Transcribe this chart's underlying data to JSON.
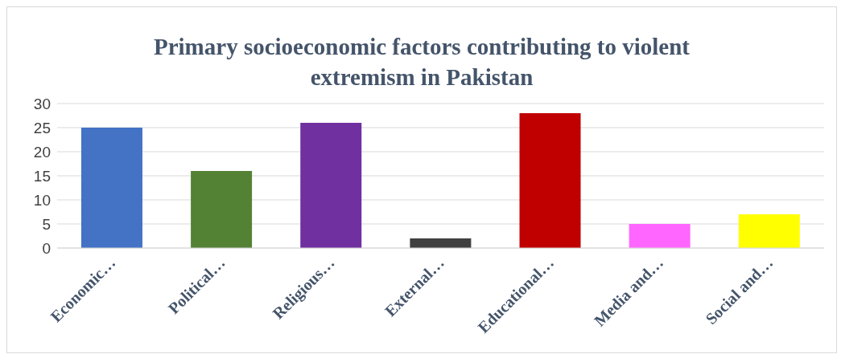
{
  "chart_data": {
    "type": "bar",
    "title": "Primary socioeconomic factors contributing to violent extremism in Pakistan",
    "categories": [
      "Economic…",
      "Political…",
      "Religious…",
      "External…",
      "Educational…",
      "Media and…",
      "Social and…"
    ],
    "values": [
      25,
      16,
      26,
      2,
      28,
      5,
      7
    ],
    "colors": [
      "#4472c4",
      "#548235",
      "#7030a0",
      "#404040",
      "#c00000",
      "#ff66ff",
      "#ffff00"
    ],
    "ylim": [
      0,
      30
    ],
    "yticks": [
      0,
      5,
      10,
      15,
      20,
      25,
      30
    ],
    "grid": "y",
    "legend": false
  }
}
